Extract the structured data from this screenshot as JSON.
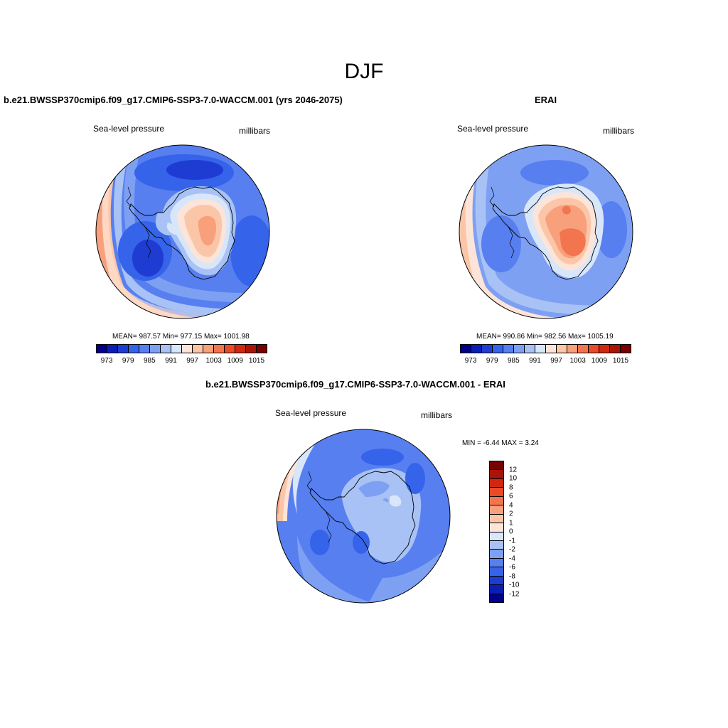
{
  "title": "DJF",
  "colors": {
    "abs_scale": [
      "#00008c",
      "#0b1eb4",
      "#1f3cd2",
      "#3563ea",
      "#577ff0",
      "#7ea0f2",
      "#a8c2f5",
      "#d8e6fa",
      "#fde4d8",
      "#fbc6a8",
      "#f8a07c",
      "#f27550",
      "#ea4a28",
      "#d02810",
      "#a81408",
      "#780000"
    ],
    "diff_scale": [
      "#00008c",
      "#0b1eb4",
      "#1f3cd2",
      "#3563ea",
      "#577ff0",
      "#7ea0f2",
      "#a8c2f5",
      "#d8e6fa",
      "#fde4d8",
      "#fbc6a8",
      "#f8a07c",
      "#f27550",
      "#ea4a28",
      "#d02810",
      "#a81408",
      "#780000"
    ]
  },
  "panels": {
    "model": {
      "title": "b.e21.BWSSP370cmip6.f09_g17.CMIP6-SSP3-7.0-WACCM.001 (yrs 2046-2075)",
      "variable": "Sea-level pressure",
      "units": "millibars",
      "stats": "MEAN= 987.57  Min= 977.15  Max= 1001.98",
      "colorbar_ticks": [
        "973",
        "979",
        "985",
        "991",
        "997",
        "1003",
        "1009",
        "1015"
      ]
    },
    "obs": {
      "title": "ERAI",
      "variable": "Sea-level pressure",
      "units": "millibars",
      "stats": "MEAN= 990.86  Min= 982.56  Max= 1005.19",
      "colorbar_ticks": [
        "973",
        "979",
        "985",
        "991",
        "997",
        "1003",
        "1009",
        "1015"
      ]
    },
    "diff": {
      "title": "b.e21.BWSSP370cmip6.f09_g17.CMIP6-SSP3-7.0-WACCM.001 - ERAI",
      "variable": "Sea-level pressure",
      "units": "millibars",
      "stats": "MIN =  -6.44 MAX =   3.24",
      "colorbar_ticks": [
        "12",
        "10",
        "8",
        "6",
        "4",
        "2",
        "1",
        "0",
        "-1",
        "-2",
        "-4",
        "-6",
        "-8",
        "-10",
        "-12"
      ]
    }
  }
}
